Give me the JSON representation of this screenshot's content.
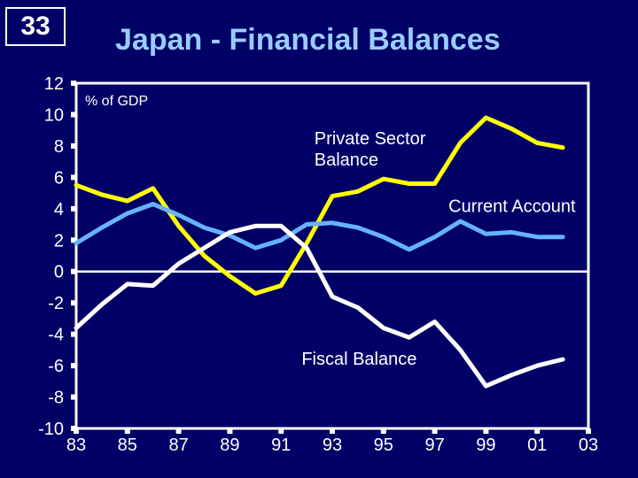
{
  "slide": {
    "number": "33"
  },
  "chart_data": {
    "type": "line",
    "title": "Japan - Financial Balances",
    "unit_label": "% of GDP",
    "xlim": [
      1983,
      2003
    ],
    "ylim": [
      -10,
      12
    ],
    "x_ticks": [
      1983,
      1985,
      1987,
      1989,
      1991,
      1993,
      1995,
      1997,
      1999,
      2001,
      2003
    ],
    "x_tick_labels": [
      "83",
      "85",
      "87",
      "89",
      "91",
      "93",
      "95",
      "97",
      "99",
      "01",
      "03"
    ],
    "y_ticks": [
      12,
      10,
      8,
      6,
      4,
      2,
      0,
      -2,
      -4,
      -6,
      -8,
      -10
    ],
    "y_tick_labels": [
      "12",
      "10",
      "8",
      "6",
      "4",
      "2",
      "0",
      "-2",
      "-4",
      "-6",
      "-8",
      "-10"
    ],
    "grid": false,
    "zero_line": true,
    "series": [
      {
        "name": "Private Sector Balance",
        "label_lines": [
          "Private Sector",
          "Balance"
        ],
        "color": "#ffff00",
        "x": [
          1983,
          1984,
          1985,
          1986,
          1987,
          1988,
          1989,
          1990,
          1991,
          1992,
          1993,
          1994,
          1995,
          1996,
          1997,
          1998,
          1999,
          2000,
          2001,
          2002
        ],
        "values": [
          5.5,
          4.9,
          4.5,
          5.3,
          2.9,
          1.0,
          -0.3,
          -1.4,
          -0.9,
          1.8,
          4.8,
          5.1,
          5.9,
          5.6,
          5.6,
          8.2,
          9.8,
          9.1,
          8.2,
          7.9
        ]
      },
      {
        "name": "Current Account",
        "label_lines": [
          "Current Account"
        ],
        "color": "#66b2ff",
        "x": [
          1983,
          1984,
          1985,
          1986,
          1987,
          1988,
          1989,
          1990,
          1991,
          1992,
          1993,
          1994,
          1995,
          1996,
          1997,
          1998,
          1999,
          2000,
          2001,
          2002
        ],
        "values": [
          1.8,
          2.8,
          3.7,
          4.3,
          3.6,
          2.8,
          2.3,
          1.5,
          2.0,
          3.0,
          3.1,
          2.8,
          2.2,
          1.4,
          2.2,
          3.2,
          2.4,
          2.5,
          2.2,
          2.2
        ]
      },
      {
        "name": "Fiscal Balance",
        "label_lines": [
          "Fiscal Balance"
        ],
        "color": "#ffffff",
        "x": [
          1983,
          1984,
          1985,
          1986,
          1987,
          1988,
          1989,
          1990,
          1991,
          1992,
          1993,
          1994,
          1995,
          1996,
          1997,
          1998,
          1999,
          2000,
          2001,
          2002
        ],
        "values": [
          -3.6,
          -2.1,
          -0.8,
          -0.9,
          0.5,
          1.5,
          2.5,
          2.9,
          2.9,
          1.5,
          -1.6,
          -2.3,
          -3.6,
          -4.2,
          -3.2,
          -5.0,
          -7.3,
          -6.6,
          -6.0,
          -5.6
        ]
      }
    ]
  }
}
